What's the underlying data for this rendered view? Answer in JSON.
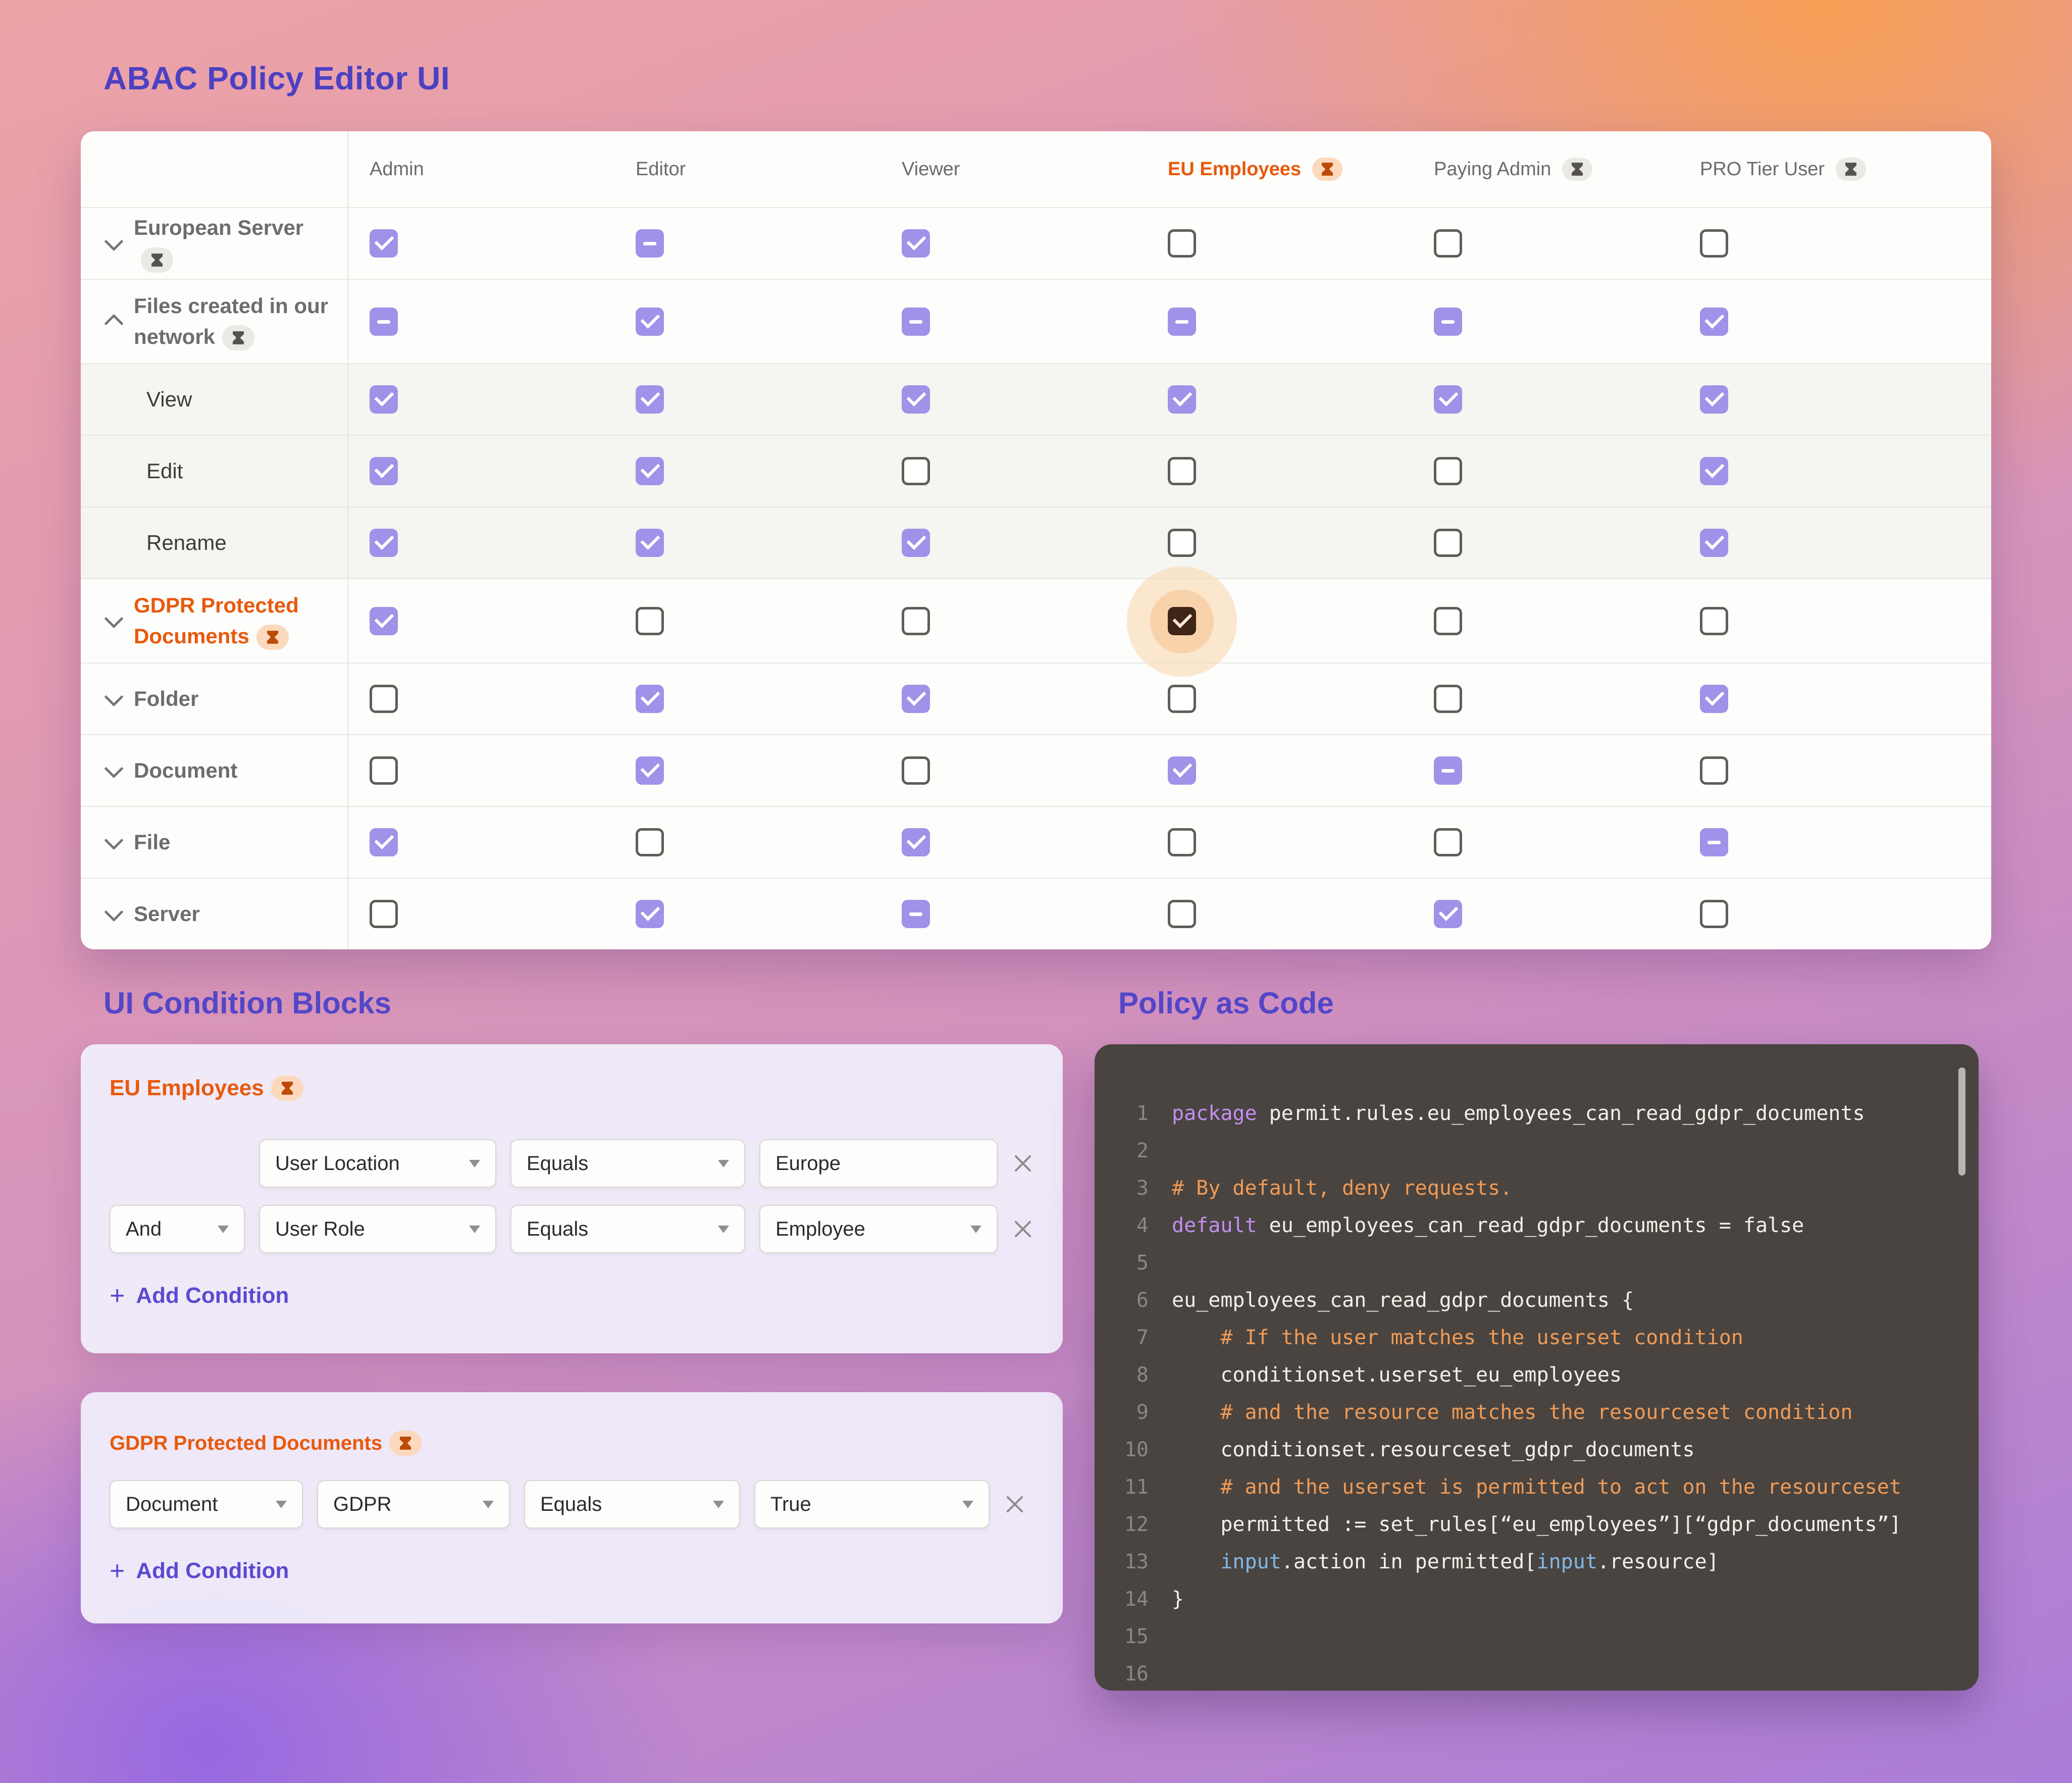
{
  "page": {
    "title": "ABAC Policy Editor UI",
    "conditions_title": "UI Condition Blocks",
    "code_title": "Policy as Code"
  },
  "matrix": {
    "columns": [
      {
        "label": "Admin"
      },
      {
        "label": "Editor"
      },
      {
        "label": "Viewer"
      },
      {
        "label": "EU Employees",
        "badge": "orange"
      },
      {
        "label": "Paying Admin",
        "badge": "gray"
      },
      {
        "label": "PRO Tier User",
        "badge": "gray"
      }
    ],
    "rows": [
      {
        "label": "European Server",
        "badge": "gray",
        "chevron": "down",
        "cells": [
          "checked",
          "indeterminate",
          "checked",
          "unchecked",
          "unchecked",
          "unchecked"
        ]
      },
      {
        "label": "Files created in our network",
        "badge": "gray",
        "chevron": "up",
        "cells": [
          "indeterminate",
          "checked",
          "indeterminate",
          "indeterminate",
          "indeterminate",
          "checked"
        ]
      },
      {
        "label": "View",
        "type": "action",
        "cells": [
          "checked",
          "checked",
          "checked",
          "checked",
          "checked",
          "checked"
        ]
      },
      {
        "label": "Edit",
        "type": "action",
        "cells": [
          "checked",
          "checked",
          "unchecked",
          "unchecked",
          "unchecked",
          "checked"
        ]
      },
      {
        "label": "Rename",
        "type": "action",
        "cells": [
          "checked",
          "checked",
          "checked",
          "unchecked",
          "unchecked",
          "checked"
        ]
      },
      {
        "label": "GDPR Protected Documents",
        "badge": "orange",
        "chevron": "down",
        "highlight": "EU Employees",
        "cells": [
          "checked",
          "unchecked",
          "unchecked",
          "checked-dark",
          "unchecked",
          "unchecked"
        ]
      },
      {
        "label": "Folder",
        "chevron": "down",
        "cells": [
          "unchecked",
          "checked",
          "checked",
          "unchecked",
          "unchecked",
          "checked"
        ]
      },
      {
        "label": "Document",
        "chevron": "down",
        "cells": [
          "unchecked",
          "checked",
          "unchecked",
          "checked",
          "indeterminate",
          "unchecked"
        ]
      },
      {
        "label": "File",
        "chevron": "down",
        "cells": [
          "checked",
          "unchecked",
          "checked",
          "unchecked",
          "unchecked",
          "indeterminate"
        ]
      },
      {
        "label": "Server",
        "chevron": "down",
        "cells": [
          "unchecked",
          "checked",
          "indeterminate",
          "unchecked",
          "checked",
          "unchecked"
        ]
      }
    ]
  },
  "condition_blocks": [
    {
      "title": "EU Employees",
      "rows": [
        {
          "fields": [
            {
              "v": "User Location"
            },
            {
              "v": "Equals"
            },
            {
              "v": "Europe"
            }
          ]
        },
        {
          "logic": "And",
          "fields": [
            {
              "v": "User Role"
            },
            {
              "v": "Equals"
            },
            {
              "v": "Employee"
            }
          ]
        }
      ],
      "plus": "+",
      "add_label": "Add Condition"
    },
    {
      "title": "GDPR Protected Documents",
      "rows": [
        {
          "fields": [
            {
              "v": "Document"
            },
            {
              "v": "GDPR"
            },
            {
              "v": "Equals"
            },
            {
              "v": "True"
            }
          ]
        }
      ],
      "plus": "+",
      "add_label": "Add Condition"
    }
  ],
  "code": {
    "lines": [
      {
        "num": "1",
        "tokens": [
          {
            "t": "keyword",
            "s": "package "
          },
          {
            "t": "plain",
            "s": "permit.rules.eu_employees_can_read_gdpr_documents"
          }
        ]
      },
      {
        "num": "2",
        "tokens": []
      },
      {
        "num": "3",
        "tokens": [
          {
            "t": "comment",
            "s": "# By default, deny requests."
          }
        ]
      },
      {
        "num": "4",
        "tokens": [
          {
            "t": "keyword",
            "s": "default "
          },
          {
            "t": "plain",
            "s": "eu_employees_can_read_gdpr_documents = false"
          }
        ]
      },
      {
        "num": "5",
        "tokens": []
      },
      {
        "num": "6",
        "tokens": [
          {
            "t": "plain",
            "s": "eu_employees_can_read_gdpr_documents {"
          }
        ]
      },
      {
        "num": "7",
        "tokens": [
          {
            "t": "comment",
            "s": "    # If the user matches the userset condition"
          }
        ]
      },
      {
        "num": "8",
        "tokens": [
          {
            "t": "plain",
            "s": "    conditionset.userset_eu_employees"
          }
        ]
      },
      {
        "num": "9",
        "tokens": [
          {
            "t": "comment",
            "s": "    # and the resource matches the resourceset condition"
          }
        ]
      },
      {
        "num": "10",
        "tokens": [
          {
            "t": "plain",
            "s": "    conditionset.resourceset_gdpr_documents"
          }
        ]
      },
      {
        "num": "11",
        "tokens": [
          {
            "t": "comment",
            "s": "    # and the userset is permitted to act on the resourceset"
          }
        ]
      },
      {
        "num": "12",
        "tokens": [
          {
            "t": "plain",
            "s": "    permitted := set_rules[“eu_employees”][“gdpr_documents”]"
          }
        ]
      },
      {
        "num": "13",
        "tokens": [
          {
            "t": "plain",
            "s": "    "
          },
          {
            "t": "blue",
            "s": "input"
          },
          {
            "t": "plain",
            "s": ".action in permitted["
          },
          {
            "t": "blue",
            "s": "input"
          },
          {
            "t": "plain",
            "s": ".resource]"
          }
        ]
      },
      {
        "num": "14",
        "tokens": [
          {
            "t": "plain",
            "s": "}"
          }
        ]
      },
      {
        "num": "15",
        "tokens": []
      },
      {
        "num": "16",
        "tokens": []
      }
    ]
  }
}
